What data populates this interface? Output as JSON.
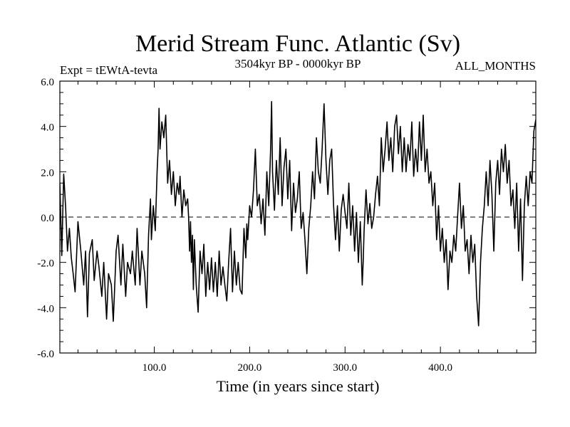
{
  "chart_data": {
    "type": "line",
    "title": "Merid Stream Func. Atlantic (Sv)",
    "subtitle_left": "Expt = tEWtA-tevta",
    "subtitle_center": "3504kyr BP - 0000kyr BP",
    "subtitle_right": "ALL_MONTHS",
    "xlabel": "Time (in years since start)",
    "ylabel": "",
    "xlim": [
      1,
      500
    ],
    "ylim": [
      -6,
      6
    ],
    "x_ticks": [
      100,
      200,
      300,
      400
    ],
    "x_tick_labels": [
      "100.0",
      "200.0",
      "300.0",
      "400.0"
    ],
    "y_ticks": [
      -6,
      -4,
      -2,
      0,
      2,
      4,
      6
    ],
    "y_tick_labels": [
      "-6.0",
      "-4.0",
      "-2.0",
      "0.0",
      "2.0",
      "4.0",
      "6.0"
    ],
    "reference_line": {
      "y": 0,
      "style": "dashed"
    },
    "series": [
      {
        "name": "Merid Stream Func. Atlantic",
        "color": "#000000",
        "points": [
          [
            1,
            1.5
          ],
          [
            3,
            -1.7
          ],
          [
            5,
            1.9
          ],
          [
            7,
            0.5
          ],
          [
            9,
            -1.5
          ],
          [
            11,
            -0.5
          ],
          [
            13,
            -1.8
          ],
          [
            15,
            -2.5
          ],
          [
            17,
            -3.3
          ],
          [
            20,
            -0.2
          ],
          [
            23,
            -1.5
          ],
          [
            26,
            -3.0
          ],
          [
            28,
            -1.5
          ],
          [
            30,
            -4.4
          ],
          [
            32,
            -1.6
          ],
          [
            35,
            -1.0
          ],
          [
            37,
            -2.8
          ],
          [
            40,
            -1.5
          ],
          [
            42,
            -2.2
          ],
          [
            45,
            -3.5
          ],
          [
            47,
            -2.0
          ],
          [
            50,
            -4.5
          ],
          [
            52,
            -2.5
          ],
          [
            55,
            -3.0
          ],
          [
            57,
            -4.6
          ],
          [
            60,
            -1.5
          ],
          [
            62,
            -0.8
          ],
          [
            65,
            -3.0
          ],
          [
            67,
            -1.2
          ],
          [
            70,
            -3.5
          ],
          [
            72,
            -2.0
          ],
          [
            75,
            -2.5
          ],
          [
            77,
            -1.5
          ],
          [
            80,
            -3.0
          ],
          [
            82,
            -0.5
          ],
          [
            85,
            -3.0
          ],
          [
            87,
            -1.5
          ],
          [
            90,
            -2.5
          ],
          [
            92,
            -4.0
          ],
          [
            94,
            -0.8
          ],
          [
            96,
            0.8
          ],
          [
            97,
            -1.0
          ],
          [
            99,
            0.5
          ],
          [
            101,
            -0.6
          ],
          [
            103,
            2.0
          ],
          [
            104,
            3.0
          ],
          [
            105,
            4.8
          ],
          [
            106,
            3.0
          ],
          [
            108,
            4.2
          ],
          [
            110,
            3.5
          ],
          [
            112,
            4.5
          ],
          [
            114,
            1.5
          ],
          [
            116,
            2.5
          ],
          [
            118,
            1.0
          ],
          [
            120,
            2.0
          ],
          [
            122,
            0.5
          ],
          [
            124,
            1.5
          ],
          [
            126,
            1.0
          ],
          [
            127,
            1.8
          ],
          [
            129,
            0.0
          ],
          [
            131,
            1.2
          ],
          [
            133,
            0.5
          ],
          [
            135,
            0.8
          ],
          [
            136,
            0.0
          ],
          [
            137,
            -1.5
          ],
          [
            138,
            -0.2
          ],
          [
            139,
            -2.0
          ],
          [
            140,
            -0.8
          ],
          [
            141,
            -3.2
          ],
          [
            142,
            -1.0
          ],
          [
            144,
            -3.0
          ],
          [
            146,
            -4.2
          ],
          [
            148,
            -1.5
          ],
          [
            150,
            -2.5
          ],
          [
            152,
            -1.2
          ],
          [
            154,
            -3.5
          ],
          [
            156,
            -2.0
          ],
          [
            158,
            -3.2
          ],
          [
            160,
            -1.8
          ],
          [
            162,
            -3.3
          ],
          [
            164,
            -2.0
          ],
          [
            166,
            -3.5
          ],
          [
            168,
            -1.5
          ],
          [
            170,
            -3.0
          ],
          [
            172,
            -2.2
          ],
          [
            174,
            -3.0
          ],
          [
            176,
            -3.7
          ],
          [
            178,
            -2.0
          ],
          [
            180,
            -0.5
          ],
          [
            182,
            -3.3
          ],
          [
            184,
            -1.5
          ],
          [
            186,
            -3.0
          ],
          [
            188,
            -2.0
          ],
          [
            190,
            -3.2
          ],
          [
            192,
            -3.4
          ],
          [
            193,
            -2.0
          ],
          [
            194,
            -0.5
          ],
          [
            196,
            -1.8
          ],
          [
            197,
            -0.3
          ],
          [
            198,
            -1.0
          ],
          [
            200,
            0.5
          ],
          [
            202,
            0.0
          ],
          [
            204,
            1.2
          ],
          [
            206,
            3.0
          ],
          [
            208,
            0.5
          ],
          [
            210,
            1.0
          ],
          [
            212,
            -0.3
          ],
          [
            214,
            0.8
          ],
          [
            216,
            -0.8
          ],
          [
            218,
            2.0
          ],
          [
            220,
            0.5
          ],
          [
            222,
            3.0
          ],
          [
            223,
            5.1
          ],
          [
            224,
            2.0
          ],
          [
            226,
            0.3
          ],
          [
            228,
            2.5
          ],
          [
            230,
            1.0
          ],
          [
            232,
            3.5
          ],
          [
            234,
            0.5
          ],
          [
            236,
            2.2
          ],
          [
            238,
            3.0
          ],
          [
            240,
            0.8
          ],
          [
            242,
            2.5
          ],
          [
            244,
            -0.6
          ],
          [
            246,
            1.5
          ],
          [
            248,
            0.2
          ],
          [
            250,
            0.8
          ],
          [
            252,
            2.0
          ],
          [
            254,
            -0.5
          ],
          [
            256,
            0.2
          ],
          [
            258,
            -1.0
          ],
          [
            260,
            -2.5
          ],
          [
            262,
            -0.5
          ],
          [
            264,
            0.5
          ],
          [
            266,
            2.0
          ],
          [
            268,
            0.8
          ],
          [
            270,
            3.5
          ],
          [
            272,
            2.0
          ],
          [
            274,
            1.5
          ],
          [
            276,
            3.0
          ],
          [
            278,
            5.0
          ],
          [
            280,
            2.5
          ],
          [
            282,
            1.0
          ],
          [
            284,
            2.5
          ],
          [
            286,
            3.0
          ],
          [
            288,
            0.5
          ],
          [
            290,
            -1.0
          ],
          [
            292,
            0.5
          ],
          [
            294,
            -1.5
          ],
          [
            296,
            0.3
          ],
          [
            298,
            1.0
          ],
          [
            300,
            0.2
          ],
          [
            302,
            -0.5
          ],
          [
            304,
            1.5
          ],
          [
            306,
            -0.8
          ],
          [
            308,
            0.5
          ],
          [
            310,
            -1.5
          ],
          [
            312,
            0.2
          ],
          [
            314,
            -2.0
          ],
          [
            316,
            -0.2
          ],
          [
            318,
            -3.0
          ],
          [
            319,
            -2.0
          ],
          [
            320,
            -0.6
          ],
          [
            322,
            1.2
          ],
          [
            324,
            -0.3
          ],
          [
            326,
            0.6
          ],
          [
            328,
            -0.5
          ],
          [
            330,
            0.0
          ],
          [
            332,
            1.0
          ],
          [
            334,
            1.8
          ],
          [
            336,
            0.5
          ],
          [
            338,
            3.5
          ],
          [
            340,
            2.0
          ],
          [
            342,
            3.0
          ],
          [
            344,
            4.2
          ],
          [
            346,
            2.5
          ],
          [
            348,
            3.5
          ],
          [
            350,
            2.0
          ],
          [
            352,
            4.0
          ],
          [
            354,
            4.5
          ],
          [
            356,
            2.8
          ],
          [
            358,
            4.0
          ],
          [
            360,
            2.0
          ],
          [
            362,
            3.5
          ],
          [
            364,
            2.0
          ],
          [
            366,
            3.2
          ],
          [
            368,
            2.5
          ],
          [
            370,
            4.2
          ],
          [
            372,
            1.8
          ],
          [
            374,
            3.0
          ],
          [
            376,
            2.0
          ],
          [
            378,
            4.2
          ],
          [
            380,
            2.5
          ],
          [
            382,
            4.5
          ],
          [
            384,
            2.0
          ],
          [
            386,
            3.0
          ],
          [
            388,
            1.5
          ],
          [
            390,
            2.0
          ],
          [
            392,
            0.5
          ],
          [
            394,
            1.5
          ],
          [
            396,
            -1.0
          ],
          [
            398,
            0.5
          ],
          [
            400,
            -1.5
          ],
          [
            402,
            -0.5
          ],
          [
            404,
            -2.0
          ],
          [
            406,
            -1.0
          ],
          [
            408,
            -3.2
          ],
          [
            410,
            -1.5
          ],
          [
            412,
            -2.0
          ],
          [
            414,
            -0.8
          ],
          [
            416,
            -1.5
          ],
          [
            418,
            0.0
          ],
          [
            420,
            1.5
          ],
          [
            422,
            -0.5
          ],
          [
            424,
            0.5
          ],
          [
            426,
            -1.5
          ],
          [
            428,
            -1.0
          ],
          [
            430,
            -2.5
          ],
          [
            432,
            -0.8
          ],
          [
            434,
            -2.0
          ],
          [
            436,
            -1.2
          ],
          [
            438,
            -3.5
          ],
          [
            440,
            -4.8
          ],
          [
            442,
            -2.0
          ],
          [
            444,
            -0.5
          ],
          [
            446,
            0.5
          ],
          [
            448,
            2.0
          ],
          [
            450,
            0.5
          ],
          [
            452,
            2.5
          ],
          [
            454,
            1.0
          ],
          [
            456,
            -1.5
          ],
          [
            458,
            1.5
          ],
          [
            460,
            2.5
          ],
          [
            462,
            1.0
          ],
          [
            464,
            3.0
          ],
          [
            466,
            2.0
          ],
          [
            468,
            3.2
          ],
          [
            470,
            1.5
          ],
          [
            472,
            2.5
          ],
          [
            474,
            0.5
          ],
          [
            476,
            1.2
          ],
          [
            478,
            -0.5
          ],
          [
            480,
            1.5
          ],
          [
            482,
            -1.5
          ],
          [
            484,
            0.8
          ],
          [
            486,
            -2.8
          ],
          [
            488,
            0.5
          ],
          [
            490,
            1.8
          ],
          [
            492,
            0.5
          ],
          [
            494,
            2.0
          ],
          [
            496,
            1.5
          ],
          [
            498,
            3.8
          ],
          [
            500,
            4.3
          ]
        ]
      }
    ]
  }
}
